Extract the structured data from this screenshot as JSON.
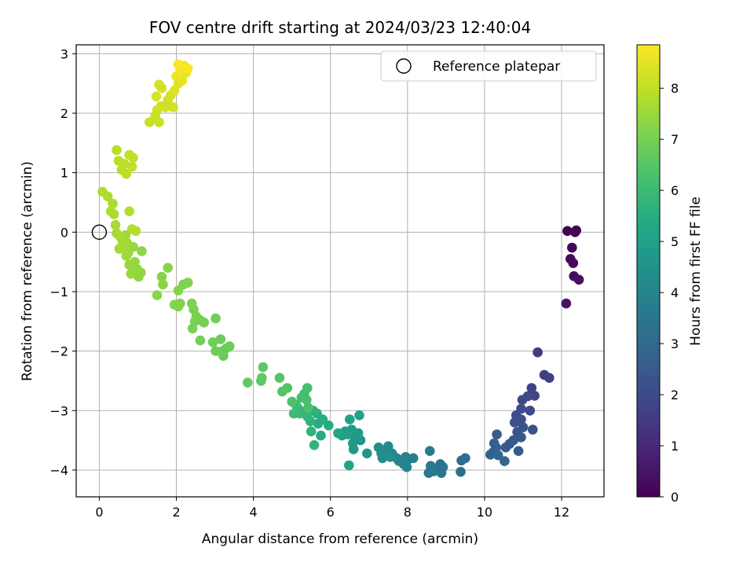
{
  "chart_data": {
    "type": "scatter",
    "title": "FOV centre drift starting at 2024/03/23 12:40:04",
    "xlabel": "Angular distance from reference (arcmin)",
    "ylabel": "Rotation from reference (arcmin)",
    "xlim": [
      -0.6,
      13.1
    ],
    "ylim": [
      -4.45,
      3.15
    ],
    "xticks": [
      0,
      2,
      4,
      6,
      8,
      10,
      12
    ],
    "yticks": [
      -4,
      -3,
      -2,
      -1,
      0,
      1,
      2,
      3
    ],
    "grid": true,
    "legend": {
      "location": "top-right",
      "entries": [
        "Reference platepar"
      ]
    },
    "reference_point": {
      "x": 0,
      "y": 0
    },
    "colorbar": {
      "label": "Hours from first FF file",
      "colormap": "viridis",
      "min": 0,
      "max": 8.85,
      "ticks": [
        0,
        1,
        2,
        3,
        4,
        5,
        6,
        7,
        8
      ]
    },
    "points": [
      [
        12.15,
        0.02,
        0.0
      ],
      [
        12.35,
        0.0,
        0.05
      ],
      [
        12.38,
        0.03,
        0.1
      ],
      [
        12.27,
        -0.26,
        0.15
      ],
      [
        12.23,
        -0.45,
        0.2
      ],
      [
        12.3,
        -0.52,
        0.25
      ],
      [
        12.32,
        -0.74,
        0.3
      ],
      [
        12.45,
        -0.8,
        0.35
      ],
      [
        12.12,
        -1.2,
        0.4
      ],
      [
        11.38,
        -2.02,
        1.5
      ],
      [
        11.55,
        -2.4,
        1.6
      ],
      [
        11.68,
        -2.45,
        1.65
      ],
      [
        11.22,
        -2.62,
        1.75
      ],
      [
        11.3,
        -2.75,
        1.8
      ],
      [
        11.12,
        -2.76,
        1.85
      ],
      [
        10.98,
        -2.82,
        1.9
      ],
      [
        11.18,
        -3.0,
        1.95
      ],
      [
        10.95,
        -2.97,
        2.0
      ],
      [
        10.82,
        -3.08,
        2.05
      ],
      [
        10.95,
        -3.15,
        2.1
      ],
      [
        10.78,
        -3.2,
        2.15
      ],
      [
        11.0,
        -3.28,
        2.2
      ],
      [
        11.25,
        -3.32,
        2.25
      ],
      [
        10.85,
        -3.36,
        2.3
      ],
      [
        10.95,
        -3.45,
        2.35
      ],
      [
        10.75,
        -3.5,
        2.4
      ],
      [
        10.65,
        -3.56,
        2.45
      ],
      [
        10.55,
        -3.62,
        2.5
      ],
      [
        10.88,
        -3.68,
        2.55
      ],
      [
        10.32,
        -3.4,
        2.6
      ],
      [
        10.25,
        -3.55,
        2.65
      ],
      [
        10.3,
        -3.62,
        2.7
      ],
      [
        10.22,
        -3.7,
        2.75
      ],
      [
        10.15,
        -3.74,
        2.8
      ],
      [
        10.35,
        -3.75,
        2.85
      ],
      [
        10.52,
        -3.85,
        2.9
      ],
      [
        9.5,
        -3.8,
        3.1
      ],
      [
        9.4,
        -3.84,
        3.15
      ],
      [
        9.38,
        -4.03,
        3.2
      ],
      [
        8.85,
        -3.9,
        3.3
      ],
      [
        8.92,
        -3.95,
        3.35
      ],
      [
        8.75,
        -3.98,
        3.4
      ],
      [
        8.88,
        -4.05,
        3.45
      ],
      [
        8.6,
        -3.93,
        3.5
      ],
      [
        8.55,
        -4.05,
        3.55
      ],
      [
        8.68,
        -4.02,
        3.6
      ],
      [
        8.58,
        -3.68,
        3.65
      ],
      [
        8.15,
        -3.8,
        3.75
      ],
      [
        8.02,
        -3.82,
        3.8
      ],
      [
        7.95,
        -3.78,
        3.85
      ],
      [
        7.9,
        -3.9,
        3.9
      ],
      [
        7.78,
        -3.85,
        3.95
      ],
      [
        7.98,
        -3.95,
        4.0
      ],
      [
        7.72,
        -3.8,
        4.05
      ],
      [
        7.6,
        -3.72,
        4.1
      ],
      [
        7.5,
        -3.6,
        4.15
      ],
      [
        7.42,
        -3.68,
        4.2
      ],
      [
        7.32,
        -3.72,
        4.25
      ],
      [
        7.35,
        -3.8,
        4.3
      ],
      [
        7.25,
        -3.62,
        4.35
      ],
      [
        7.55,
        -3.78,
        4.4
      ],
      [
        6.95,
        -3.72,
        4.55
      ],
      [
        6.78,
        -3.5,
        4.6
      ],
      [
        6.62,
        -3.42,
        4.65
      ],
      [
        6.58,
        -3.55,
        4.7
      ],
      [
        6.6,
        -3.65,
        4.75
      ],
      [
        6.72,
        -3.38,
        4.8
      ],
      [
        6.55,
        -3.32,
        4.85
      ],
      [
        6.45,
        -3.4,
        4.9
      ],
      [
        6.38,
        -3.35,
        4.95
      ],
      [
        6.3,
        -3.42,
        5.0
      ],
      [
        6.5,
        -3.15,
        5.05
      ],
      [
        6.75,
        -3.08,
        5.1
      ],
      [
        6.48,
        -3.92,
        5.15
      ],
      [
        6.2,
        -3.38,
        5.2
      ],
      [
        5.95,
        -3.25,
        5.35
      ],
      [
        5.75,
        -3.42,
        5.4
      ],
      [
        5.68,
        -3.22,
        5.45
      ],
      [
        5.8,
        -3.15,
        5.5
      ],
      [
        5.65,
        -3.05,
        5.55
      ],
      [
        5.55,
        -3.0,
        5.6
      ],
      [
        5.48,
        -3.18,
        5.65
      ],
      [
        5.5,
        -3.35,
        5.7
      ],
      [
        5.58,
        -3.58,
        5.75
      ],
      [
        5.4,
        -3.1,
        5.8
      ],
      [
        5.3,
        -3.02,
        5.85
      ],
      [
        5.2,
        -3.05,
        5.9
      ],
      [
        5.15,
        -2.95,
        5.95
      ],
      [
        5.05,
        -3.05,
        6.0
      ],
      [
        5.1,
        -2.9,
        6.05
      ],
      [
        5.25,
        -2.78,
        6.1
      ],
      [
        5.32,
        -2.72,
        6.15
      ],
      [
        5.4,
        -2.62,
        6.2
      ],
      [
        5.38,
        -2.82,
        6.25
      ],
      [
        5.42,
        -2.95,
        6.3
      ],
      [
        5.0,
        -2.85,
        6.35
      ],
      [
        4.88,
        -2.62,
        6.4
      ],
      [
        4.75,
        -2.68,
        6.45
      ],
      [
        4.68,
        -2.45,
        6.5
      ],
      [
        4.2,
        -2.5,
        6.55
      ],
      [
        4.25,
        -2.27,
        6.6
      ],
      [
        4.22,
        -2.45,
        6.65
      ],
      [
        3.85,
        -2.53,
        6.7
      ],
      [
        3.3,
        -1.95,
        6.8
      ],
      [
        3.2,
        -2.0,
        6.82
      ],
      [
        3.22,
        -2.08,
        6.84
      ],
      [
        3.38,
        -1.92,
        6.86
      ],
      [
        3.15,
        -1.8,
        6.88
      ],
      [
        3.02,
        -2.0,
        6.9
      ],
      [
        2.95,
        -1.85,
        6.92
      ],
      [
        3.02,
        -1.45,
        6.94
      ],
      [
        2.62,
        -1.82,
        6.96
      ],
      [
        2.72,
        -1.52,
        6.98
      ],
      [
        2.62,
        -1.48,
        7.0
      ],
      [
        2.52,
        -1.42,
        7.02
      ],
      [
        2.45,
        -1.3,
        7.04
      ],
      [
        2.48,
        -1.5,
        7.06
      ],
      [
        2.42,
        -1.62,
        7.08
      ],
      [
        2.4,
        -1.2,
        7.1
      ],
      [
        2.3,
        -0.85,
        7.12
      ],
      [
        2.18,
        -0.88,
        7.14
      ],
      [
        2.1,
        -1.2,
        7.16
      ],
      [
        2.05,
        -0.98,
        7.18
      ],
      [
        2.05,
        -1.25,
        7.2
      ],
      [
        1.95,
        -1.22,
        7.22
      ],
      [
        1.78,
        -0.6,
        7.24
      ],
      [
        1.62,
        -0.75,
        7.26
      ],
      [
        1.65,
        -0.88,
        7.28
      ],
      [
        1.5,
        -1.06,
        7.3
      ],
      [
        1.1,
        -0.32,
        7.35
      ],
      [
        1.08,
        -0.68,
        7.37
      ],
      [
        1.02,
        -0.75,
        7.39
      ],
      [
        0.98,
        -0.62,
        7.41
      ],
      [
        0.92,
        -0.5,
        7.43
      ],
      [
        0.88,
        -0.25,
        7.45
      ],
      [
        0.82,
        -0.7,
        7.47
      ],
      [
        0.78,
        -0.55,
        7.49
      ],
      [
        0.75,
        -0.35,
        7.51
      ],
      [
        0.72,
        -0.18,
        7.53
      ],
      [
        0.68,
        -0.05,
        7.55
      ],
      [
        0.7,
        -0.4,
        7.57
      ],
      [
        0.65,
        -0.25,
        7.59
      ],
      [
        0.6,
        -0.15,
        7.61
      ],
      [
        0.55,
        -0.08,
        7.63
      ],
      [
        0.52,
        -0.28,
        7.65
      ],
      [
        0.45,
        -0.02,
        7.67
      ],
      [
        0.42,
        0.12,
        7.69
      ],
      [
        0.38,
        0.3,
        7.71
      ],
      [
        0.35,
        0.48,
        7.73
      ],
      [
        0.3,
        0.35,
        7.75
      ],
      [
        0.22,
        0.6,
        7.77
      ],
      [
        0.08,
        0.68,
        7.79
      ],
      [
        0.85,
        0.05,
        7.81
      ],
      [
        0.78,
        0.35,
        7.83
      ],
      [
        0.95,
        0.02,
        7.85
      ],
      [
        0.45,
        1.38,
        7.9
      ],
      [
        0.5,
        1.2,
        7.92
      ],
      [
        0.58,
        1.05,
        7.94
      ],
      [
        0.65,
        1.15,
        7.96
      ],
      [
        0.7,
        0.98,
        7.98
      ],
      [
        0.78,
        1.3,
        8.0
      ],
      [
        0.85,
        1.1,
        8.02
      ],
      [
        0.88,
        1.25,
        8.04
      ],
      [
        1.3,
        1.85,
        8.1
      ],
      [
        1.45,
        1.95,
        8.12
      ],
      [
        1.55,
        1.85,
        8.14
      ],
      [
        1.5,
        2.05,
        8.16
      ],
      [
        1.6,
        2.12,
        8.18
      ],
      [
        1.72,
        2.1,
        8.2
      ],
      [
        1.78,
        2.22,
        8.22
      ],
      [
        1.85,
        2.3,
        8.24
      ],
      [
        1.92,
        2.1,
        8.26
      ],
      [
        1.62,
        2.42,
        8.28
      ],
      [
        1.55,
        2.48,
        8.3
      ],
      [
        1.48,
        2.28,
        8.32
      ],
      [
        1.95,
        2.38,
        8.4
      ],
      [
        2.05,
        2.5,
        8.45
      ],
      [
        2.15,
        2.55,
        8.5
      ],
      [
        2.25,
        2.68,
        8.55
      ],
      [
        2.0,
        2.62,
        8.6
      ],
      [
        2.1,
        2.75,
        8.65
      ],
      [
        2.2,
        2.8,
        8.7
      ],
      [
        2.05,
        2.82,
        8.75
      ],
      [
        2.3,
        2.75,
        8.8
      ]
    ]
  }
}
